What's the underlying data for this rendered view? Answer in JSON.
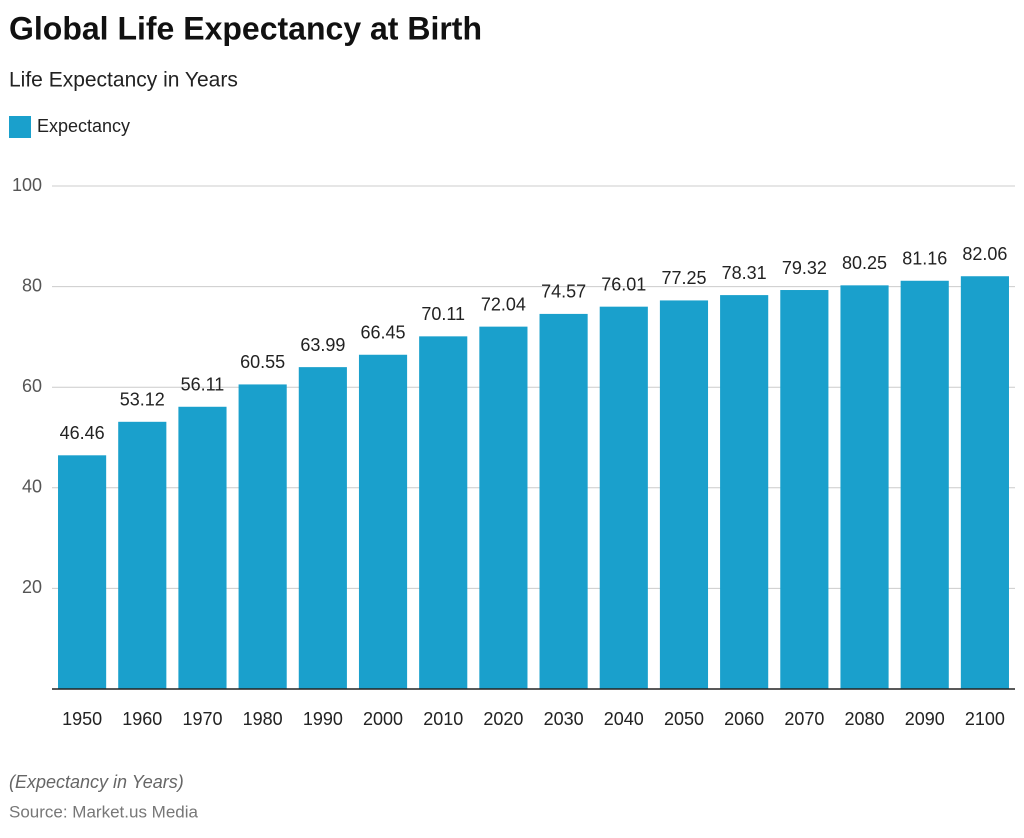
{
  "chart_data": {
    "type": "bar",
    "title": "Global Life Expectancy at Birth",
    "subtitle": "Life Expectancy in Years",
    "categories": [
      "1950",
      "1960",
      "1970",
      "1980",
      "1990",
      "2000",
      "2010",
      "2020",
      "2030",
      "2040",
      "2050",
      "2060",
      "2070",
      "2080",
      "2090",
      "2100"
    ],
    "series": [
      {
        "name": "Expectancy",
        "color": "#1aa0cc",
        "values": [
          46.46,
          53.12,
          56.11,
          60.55,
          63.99,
          66.45,
          70.11,
          72.04,
          74.57,
          76.01,
          77.25,
          78.31,
          79.32,
          80.25,
          81.16,
          82.06
        ]
      }
    ],
    "ylim": [
      0,
      100
    ],
    "yticks": [
      20,
      40,
      60,
      80,
      100
    ],
    "grid": true,
    "legend": "top-left",
    "note": "(Expectancy in Years)",
    "source": "Source: Market.us Media"
  }
}
